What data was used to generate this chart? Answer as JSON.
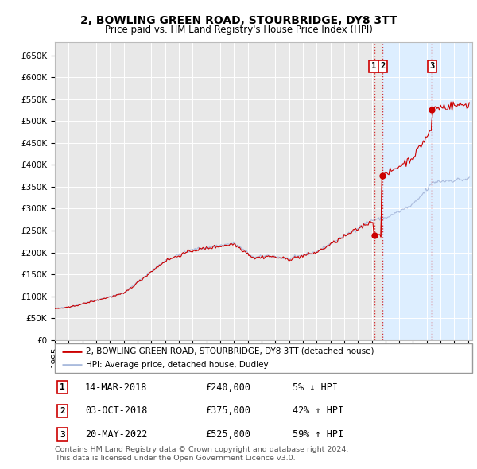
{
  "title": "2, BOWLING GREEN ROAD, STOURBRIDGE, DY8 3TT",
  "subtitle": "Price paid vs. HM Land Registry's House Price Index (HPI)",
  "background_color": "#ffffff",
  "plot_bg_color": "#e8e8e8",
  "grid_color": "#ffffff",
  "shade_color": "#ddeeff",
  "ylim": [
    0,
    680000
  ],
  "yticks": [
    0,
    50000,
    100000,
    150000,
    200000,
    250000,
    300000,
    350000,
    400000,
    450000,
    500000,
    550000,
    600000,
    650000
  ],
  "ytick_labels": [
    "£0",
    "£50K",
    "£100K",
    "£150K",
    "£200K",
    "£250K",
    "£300K",
    "£350K",
    "£400K",
    "£450K",
    "£500K",
    "£550K",
    "£600K",
    "£650K"
  ],
  "transactions": [
    {
      "num": 1,
      "date": "14-MAR-2018",
      "price": 240000,
      "pct": "5%",
      "dir": "↓",
      "year_f": 2018.2
    },
    {
      "num": 2,
      "date": "03-OCT-2018",
      "price": 375000,
      "pct": "42%",
      "dir": "↑",
      "year_f": 2018.75
    },
    {
      "num": 3,
      "date": "20-MAY-2022",
      "price": 525000,
      "pct": "59%",
      "dir": "↑",
      "year_f": 2022.38
    }
  ],
  "legend_property": "2, BOWLING GREEN ROAD, STOURBRIDGE, DY8 3TT (detached house)",
  "legend_hpi": "HPI: Average price, detached house, Dudley",
  "footer1": "Contains HM Land Registry data © Crown copyright and database right 2024.",
  "footer2": "This data is licensed under the Open Government Licence v3.0.",
  "hpi_color": "#aabbdd",
  "property_color": "#cc0000",
  "dashed_color": "#cc0000",
  "xlim_left": 1995.0,
  "xlim_right": 2025.3
}
